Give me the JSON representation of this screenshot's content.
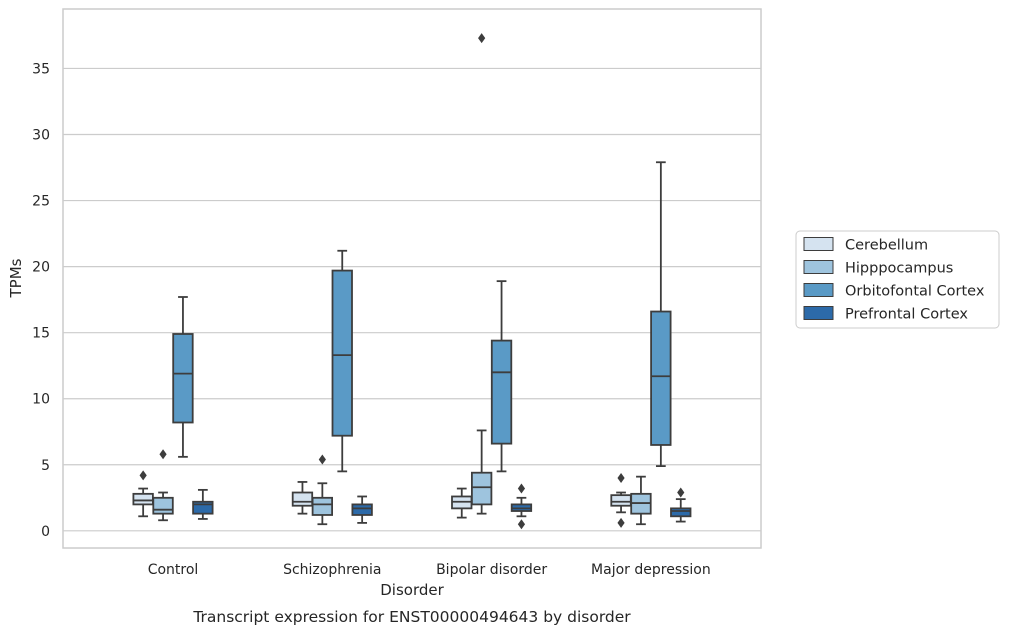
{
  "caption": "Transcript expression for ENST00000494643 by disorder",
  "chart_data": {
    "type": "box",
    "xlabel": "Disorder",
    "ylabel": "TPMs",
    "categories": [
      "Control",
      "Schizophrenia",
      "Bipolar disorder",
      "Major depression"
    ],
    "ylim": [
      -1.3,
      39.5
    ],
    "yticks": [
      0,
      5,
      10,
      15,
      20,
      25,
      30,
      35
    ],
    "grid": "horizontal",
    "legend_position": "right",
    "series": [
      {
        "name": "Cerebellum",
        "color": "#d5e3f0",
        "boxes": [
          {
            "whislo": 1.1,
            "q1": 2.0,
            "med": 2.3,
            "q3": 2.8,
            "whishi": 3.2,
            "fliers": [
              4.2
            ]
          },
          {
            "whislo": 1.3,
            "q1": 1.9,
            "med": 2.2,
            "q3": 2.9,
            "whishi": 3.7,
            "fliers": []
          },
          {
            "whislo": 1.0,
            "q1": 1.7,
            "med": 2.2,
            "q3": 2.6,
            "whishi": 3.2,
            "fliers": []
          },
          {
            "whislo": 1.4,
            "q1": 1.9,
            "med": 2.2,
            "q3": 2.7,
            "whishi": 2.9,
            "fliers": [
              4.0,
              0.6
            ]
          }
        ]
      },
      {
        "name": "Hipppocampus",
        "color": "#9ec4de",
        "boxes": [
          {
            "whislo": 0.8,
            "q1": 1.3,
            "med": 1.6,
            "q3": 2.5,
            "whishi": 2.9,
            "fliers": [
              5.8
            ]
          },
          {
            "whislo": 0.5,
            "q1": 1.2,
            "med": 2.0,
            "q3": 2.5,
            "whishi": 3.6,
            "fliers": [
              5.4
            ]
          },
          {
            "whislo": 1.3,
            "q1": 2.0,
            "med": 3.3,
            "q3": 4.4,
            "whishi": 7.6,
            "fliers": [
              37.3
            ]
          },
          {
            "whislo": 0.5,
            "q1": 1.3,
            "med": 2.1,
            "q3": 2.8,
            "whishi": 4.1,
            "fliers": []
          }
        ]
      },
      {
        "name": "Orbitofontal Cortex",
        "color": "#5a9ac6",
        "boxes": [
          {
            "whislo": 5.6,
            "q1": 8.2,
            "med": 11.9,
            "q3": 14.9,
            "whishi": 17.7,
            "fliers": []
          },
          {
            "whislo": 4.5,
            "q1": 7.2,
            "med": 13.3,
            "q3": 19.7,
            "whishi": 21.2,
            "fliers": []
          },
          {
            "whislo": 4.5,
            "q1": 6.6,
            "med": 12.0,
            "q3": 14.4,
            "whishi": 18.9,
            "fliers": []
          },
          {
            "whislo": 4.9,
            "q1": 6.5,
            "med": 11.7,
            "q3": 16.6,
            "whishi": 27.9,
            "fliers": []
          }
        ]
      },
      {
        "name": "Prefrontal Cortex",
        "color": "#2c6aa9",
        "boxes": [
          {
            "whislo": 0.9,
            "q1": 1.3,
            "med": 2.0,
            "q3": 2.2,
            "whishi": 3.1,
            "fliers": []
          },
          {
            "whislo": 0.6,
            "q1": 1.2,
            "med": 1.7,
            "q3": 2.0,
            "whishi": 2.6,
            "fliers": []
          },
          {
            "whislo": 1.1,
            "q1": 1.5,
            "med": 1.7,
            "q3": 2.0,
            "whishi": 2.5,
            "fliers": [
              3.2,
              0.5
            ]
          },
          {
            "whislo": 0.7,
            "q1": 1.1,
            "med": 1.5,
            "q3": 1.7,
            "whishi": 2.4,
            "fliers": [
              2.9
            ]
          }
        ]
      }
    ]
  }
}
